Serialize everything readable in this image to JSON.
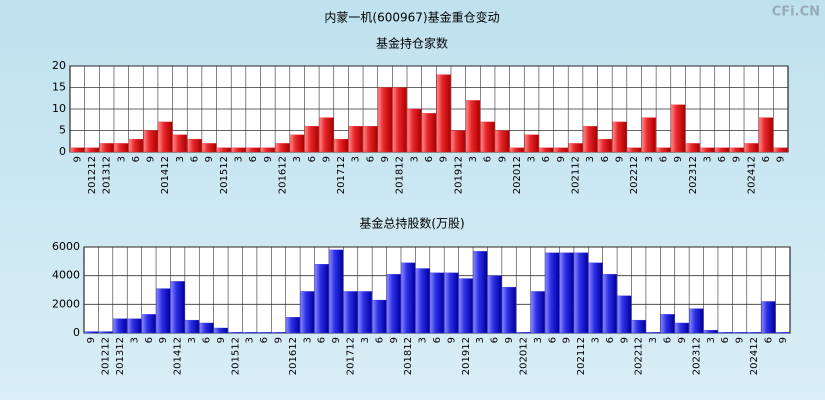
{
  "watermark": "CFi.CN",
  "title": "内蒙一机(600967)基金重仓变动",
  "chart_data": [
    {
      "type": "bar",
      "title": "基金持仓家数",
      "color": "#e8262b",
      "categories": [
        "9",
        "201212",
        "201312",
        "3",
        "6",
        "9",
        "201412",
        "3",
        "6",
        "9",
        "201512",
        "3",
        "6",
        "9",
        "201612",
        "3",
        "6",
        "9",
        "201712",
        "3",
        "6",
        "9",
        "201812",
        "3",
        "6",
        "9",
        "201912",
        "3",
        "6",
        "9",
        "202012",
        "3",
        "6",
        "9",
        "202112",
        "3",
        "6",
        "9",
        "202212",
        "3",
        "6",
        "9",
        "202312",
        "3",
        "6",
        "9",
        "202412",
        "6",
        "9"
      ],
      "values": [
        1,
        1,
        2,
        2,
        3,
        5,
        7,
        4,
        3,
        2,
        1,
        1,
        1,
        1,
        2,
        4,
        6,
        8,
        3,
        6,
        6,
        15,
        15,
        10,
        9,
        18,
        5,
        12,
        7,
        5,
        1,
        4,
        1,
        1,
        2,
        6,
        3,
        7,
        1,
        8,
        1,
        11,
        2,
        1,
        1,
        1,
        2,
        8,
        1
      ],
      "ylim": [
        0,
        20
      ],
      "yticks": [
        0,
        5,
        10,
        15,
        20
      ],
      "grid": true
    },
    {
      "type": "bar",
      "title": "基金总持股数(万股)",
      "color": "#2f2fe6",
      "categories": [
        "9",
        "201212",
        "201312",
        "3",
        "6",
        "9",
        "201412",
        "3",
        "6",
        "9",
        "201512",
        "3",
        "6",
        "9",
        "201612",
        "3",
        "6",
        "9",
        "201712",
        "3",
        "6",
        "9",
        "201812",
        "3",
        "6",
        "9",
        "201912",
        "3",
        "6",
        "9",
        "202012",
        "3",
        "6",
        "9",
        "202112",
        "3",
        "6",
        "9",
        "202212",
        "3",
        "6",
        "9",
        "202312",
        "3",
        "6",
        "9",
        "202412",
        "6",
        "9"
      ],
      "values": [
        100,
        100,
        1000,
        1000,
        1300,
        3100,
        3600,
        900,
        700,
        350,
        50,
        50,
        50,
        50,
        1100,
        2900,
        4800,
        5800,
        2900,
        2900,
        2300,
        4100,
        4900,
        4500,
        4200,
        4200,
        3800,
        5700,
        4000,
        3200,
        50,
        2900,
        5600,
        5600,
        5600,
        4900,
        4100,
        2600,
        900,
        50,
        1300,
        700,
        1700,
        200,
        50,
        50,
        50,
        2200,
        50
      ],
      "ylim": [
        0,
        6000
      ],
      "yticks": [
        0,
        2000,
        4000,
        6000
      ],
      "grid": true
    }
  ]
}
